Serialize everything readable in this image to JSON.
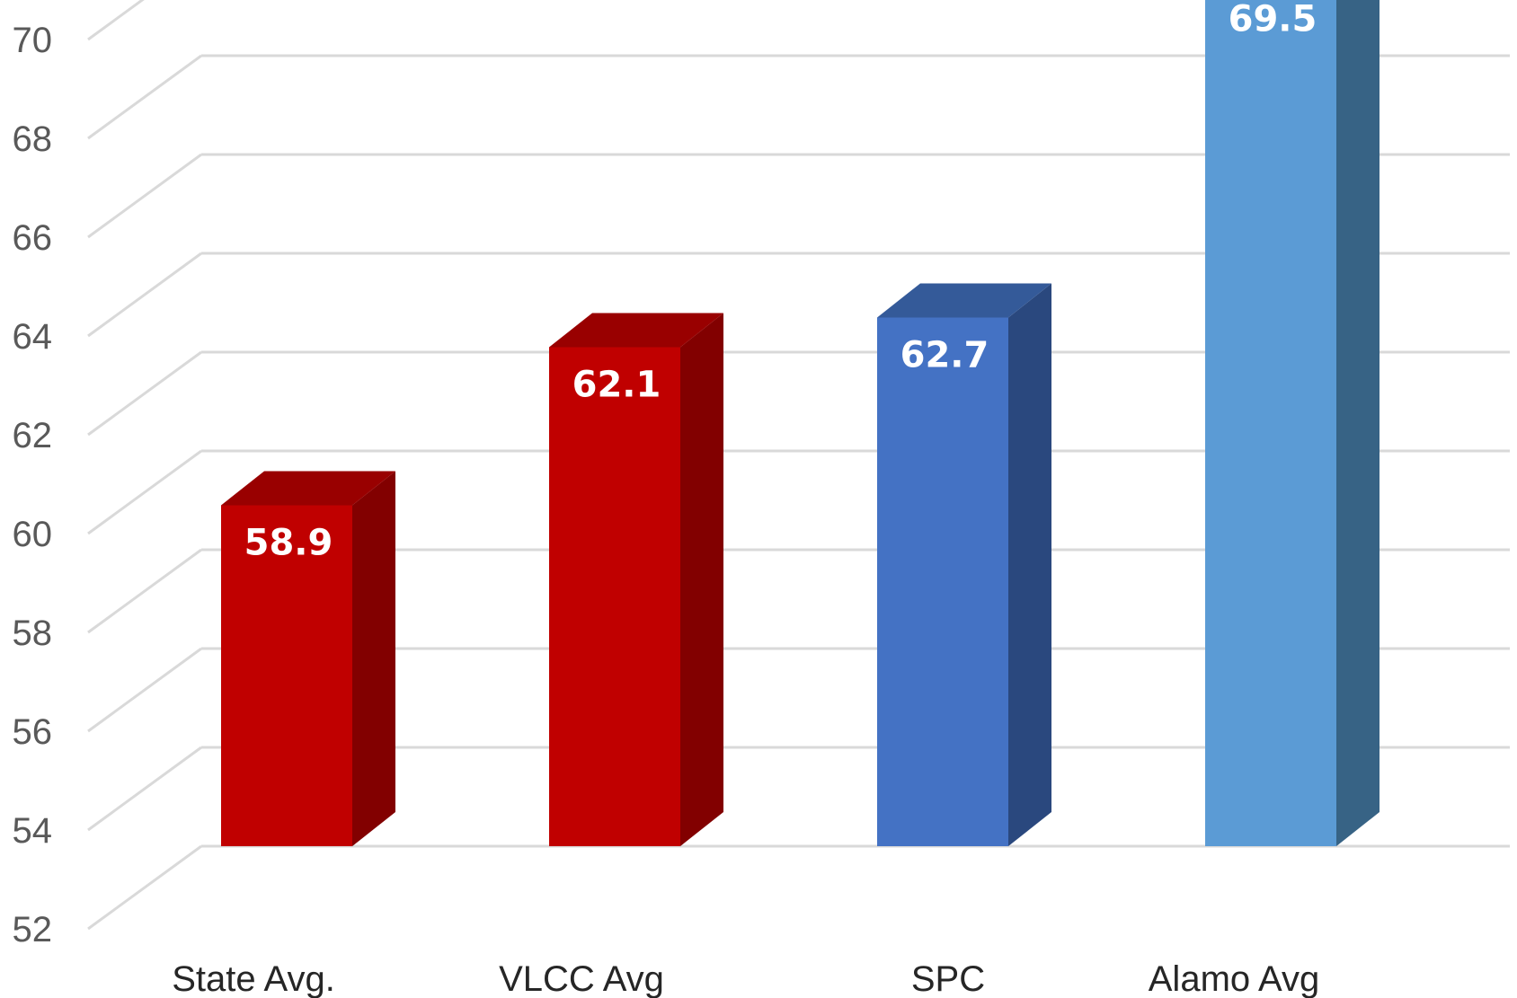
{
  "chart_data": {
    "type": "bar",
    "categories": [
      "State Avg.",
      "VLCC Avg",
      "SPC",
      "Alamo Avg"
    ],
    "values": [
      58.9,
      62.1,
      62.7,
      69.5
    ],
    "value_labels": [
      "58.9",
      "62.1",
      "62.7",
      "69.5"
    ],
    "ylim": [
      52,
      70
    ],
    "yticks": [
      "52",
      "54",
      "56",
      "58",
      "60",
      "62",
      "64",
      "66",
      "68",
      "70"
    ],
    "grid": true,
    "legend": "none",
    "colors": {
      "bars": [
        {
          "front": "#c00000",
          "side": "#820000",
          "top": "#990000"
        },
        {
          "front": "#c00000",
          "side": "#820000",
          "top": "#990000"
        },
        {
          "front": "#4472c4",
          "side": "#2a487e",
          "top": "#345a99"
        },
        {
          "front": "#5b9bd5",
          "side": "#376385",
          "top": "#4577a5"
        }
      ],
      "grid": "#d9d9d9",
      "axis_text": "#595959",
      "category_text": "#262626",
      "data_label": "#ffffff"
    }
  }
}
